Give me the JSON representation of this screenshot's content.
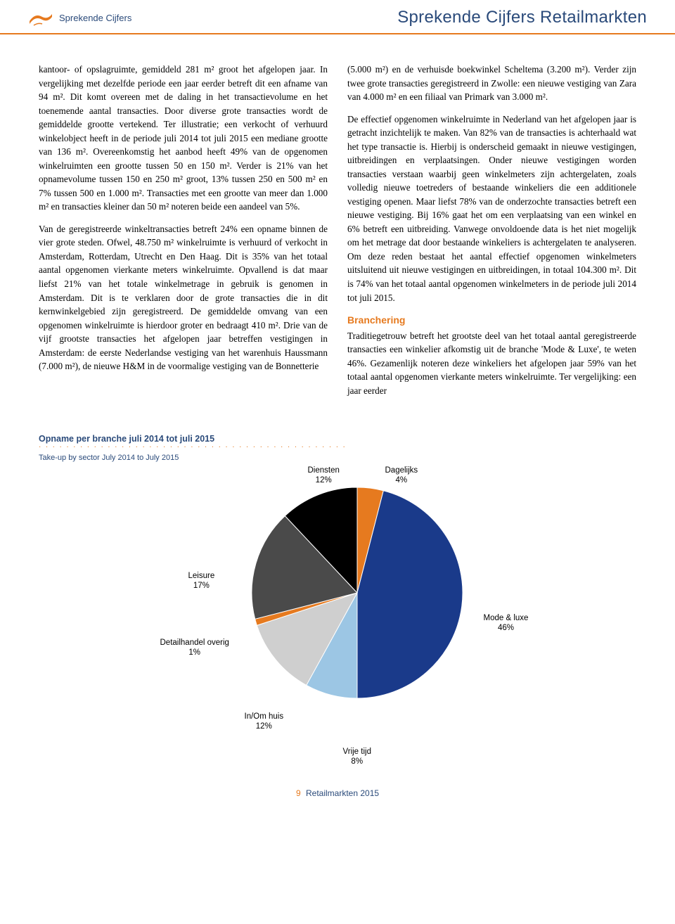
{
  "header": {
    "logo_text": "Sprekende Cijfers",
    "title": "Sprekende Cijfers Retailmarkten"
  },
  "text": {
    "col1_p1": "kantoor- of opslagruimte, gemiddeld 281 m² groot het afgelopen jaar. In vergelijking met dezelfde periode een jaar eerder betreft dit een afname van 94 m². Dit komt overeen met de daling in het transactievolume en het toenemende aantal transacties. Door diverse grote transacties wordt de gemiddelde grootte vertekend. Ter illustratie; een verkocht of verhuurd winkelobject heeft in de periode juli 2014 tot juli 2015 een mediane grootte van 136 m². Overeenkomstig het aanbod heeft 49% van de opgenomen winkelruimten een grootte tussen 50 en 150 m². Verder is 21% van het opnamevolume tussen 150 en 250 m² groot, 13% tussen 250 en 500 m² en 7% tussen 500 en 1.000 m². Transacties met een grootte van meer dan 1.000 m² en transacties kleiner dan 50 m² noteren beide een aandeel van 5%.",
    "col1_p2": "Van de geregistreerde winkeltransacties betreft 24% een opname binnen de vier grote steden. Ofwel, 48.750 m² winkelruimte is verhuurd of verkocht in Amsterdam, Rotterdam, Utrecht en Den Haag. Dit is 35% van het totaal aantal opgenomen vierkante meters winkelruimte. Opvallend is dat maar liefst 21% van het totale winkelmetrage in gebruik is genomen in Amsterdam. Dit is te verklaren door de grote transacties die in dit kernwinkelgebied zijn geregistreerd. De gemiddelde omvang van een opgenomen winkelruimte is hierdoor groter en bedraagt 410 m². Drie van de vijf grootste transacties het afgelopen jaar betreffen vestigingen in Amsterdam: de eerste Nederlandse vestiging van het warenhuis Haussmann (7.000 m²), de nieuwe H&M in de voormalige vestiging van de Bonnetterie",
    "col2_p1": "(5.000 m²) en de verhuisde boekwinkel Scheltema (3.200 m²). Verder zijn twee grote transacties geregistreerd in Zwolle: een nieuwe vestiging van Zara van 4.000 m² en een filiaal van Primark van 3.000 m².",
    "col2_p2": "De effectief opgenomen winkelruimte in Nederland van het afgelopen jaar is getracht inzichtelijk te maken. Van 82% van de transacties is achterhaald wat het type transactie is. Hierbij is onderscheid gemaakt in nieuwe vestigingen, uitbreidingen en verplaatsingen. Onder nieuwe vestigingen worden transacties verstaan waarbij geen winkelmeters zijn achtergelaten, zoals volledig nieuwe toetreders of bestaande winkeliers die een additionele vestiging openen. Maar liefst 78% van de onderzochte transacties betreft een nieuwe vestiging. Bij 16% gaat het om een verplaatsing van een winkel en 6% betreft een uitbreiding. Vanwege onvoldoende data is het niet mogelijk om het metrage dat door bestaande winkeliers is achtergelaten te analyseren. Om deze reden bestaat het aantal effectief opgenomen winkelmeters uitsluitend uit nieuwe vestigingen en uitbreidingen, in totaal 104.300 m². Dit is 74% van het totaal aantal opgenomen winkelmeters in de periode juli 2014 tot juli 2015.",
    "col2_heading": "Branchering",
    "col2_p3": "Traditiegetrouw betreft het grootste deel van het totaal aantal geregistreerde transacties een winkelier afkomstig uit de branche 'Mode & Luxe', te weten 46%. Gezamenlijk noteren deze winkeliers het afgelopen jaar 59% van het totaal aantal opgenomen vierkante meters winkelruimte. Ter vergelijking: een jaar eerder"
  },
  "chart": {
    "title_nl": "Opname per branche juli 2014 tot juli 2015",
    "title_en": "Take-up by sector July 2014 to July 2015",
    "type": "pie",
    "radius": 150,
    "stroke": "#ffffff",
    "stroke_width": 1,
    "slices": [
      {
        "label": "Dagelijks",
        "pct": 4,
        "color": "#e67a1f"
      },
      {
        "label": "Mode & luxe",
        "pct": 46,
        "color": "#1a3a8a"
      },
      {
        "label": "Vrije tijd",
        "pct": 8,
        "color": "#9cc6e4"
      },
      {
        "label": "In/Om huis",
        "pct": 12,
        "color": "#cfcfcf"
      },
      {
        "label": "Detailhandel overig",
        "pct": 1,
        "color": "#e67a1f"
      },
      {
        "label": "Leisure",
        "pct": 17,
        "color": "#4a4a4a"
      },
      {
        "label": "Diensten",
        "pct": 12,
        "color": "#000000"
      }
    ]
  },
  "footer": {
    "page": "9",
    "text": "Retailmarkten 2015"
  },
  "colors": {
    "accent": "#e67a1f",
    "brand_blue": "#2a4a7a"
  }
}
